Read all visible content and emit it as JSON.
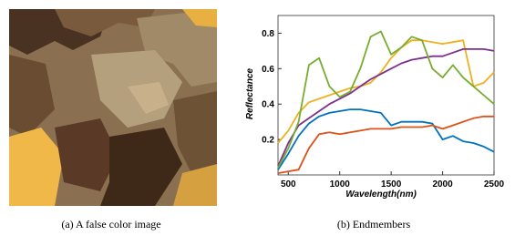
{
  "figure": {
    "captions": [
      "(a) A false color image",
      "(b) Endmembers"
    ]
  },
  "chart_data": {
    "type": "line",
    "ylabel": "Reflectance",
    "xlabel": "Wavelength(nm)",
    "x": [
      400,
      500,
      600,
      700,
      800,
      900,
      1000,
      1100,
      1200,
      1300,
      1400,
      1500,
      1600,
      1700,
      1800,
      1900,
      2000,
      2100,
      2200,
      2300,
      2400,
      2500
    ],
    "series": [
      {
        "color": "#0072bd",
        "values": [
          0.03,
          0.12,
          0.22,
          0.29,
          0.33,
          0.35,
          0.36,
          0.37,
          0.37,
          0.36,
          0.35,
          0.28,
          0.3,
          0.3,
          0.3,
          0.29,
          0.2,
          0.22,
          0.19,
          0.18,
          0.16,
          0.13
        ]
      },
      {
        "color": "#d95319",
        "values": [
          0.01,
          0.02,
          0.03,
          0.15,
          0.23,
          0.24,
          0.23,
          0.24,
          0.25,
          0.26,
          0.26,
          0.26,
          0.27,
          0.27,
          0.27,
          0.28,
          0.26,
          0.28,
          0.3,
          0.32,
          0.33,
          0.33
        ]
      },
      {
        "color": "#edb120",
        "values": [
          0.18,
          0.25,
          0.35,
          0.41,
          0.43,
          0.45,
          0.47,
          0.49,
          0.5,
          0.52,
          0.58,
          0.66,
          0.72,
          0.76,
          0.76,
          0.75,
          0.74,
          0.75,
          0.76,
          0.5,
          0.52,
          0.58
        ]
      },
      {
        "color": "#7e2f8e",
        "values": [
          0.05,
          0.18,
          0.28,
          0.32,
          0.36,
          0.4,
          0.43,
          0.46,
          0.5,
          0.54,
          0.57,
          0.6,
          0.63,
          0.65,
          0.66,
          0.67,
          0.67,
          0.69,
          0.71,
          0.71,
          0.71,
          0.7
        ]
      },
      {
        "color": "#77ac30",
        "values": [
          0.04,
          0.15,
          0.3,
          0.62,
          0.66,
          0.5,
          0.44,
          0.47,
          0.6,
          0.78,
          0.81,
          0.68,
          0.72,
          0.78,
          0.76,
          0.6,
          0.55,
          0.62,
          0.55,
          0.5,
          0.45,
          0.4
        ]
      }
    ],
    "xlim": [
      400,
      2500
    ],
    "ylim": [
      0,
      0.9
    ],
    "xticks": [
      500,
      1000,
      1500,
      2000,
      2500
    ],
    "yticks": [
      0.2,
      0.4,
      0.6,
      0.8
    ]
  }
}
